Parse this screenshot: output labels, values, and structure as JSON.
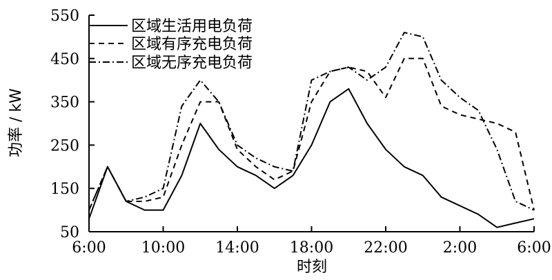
{
  "chart_data": {
    "type": "line",
    "xlabel": "时刻",
    "ylabel": "功率 / kW",
    "xticks": [
      "6:00",
      "10:00",
      "14:00",
      "18:00",
      "22:00",
      "2:00",
      "6:00"
    ],
    "yticks": [
      50,
      150,
      250,
      350,
      450,
      550
    ],
    "ylim": [
      50,
      550
    ],
    "x": [
      "6:00",
      "7:00",
      "8:00",
      "9:00",
      "10:00",
      "11:00",
      "12:00",
      "13:00",
      "14:00",
      "15:00",
      "16:00",
      "17:00",
      "18:00",
      "19:00",
      "20:00",
      "21:00",
      "22:00",
      "23:00",
      "0:00",
      "1:00",
      "2:00",
      "3:00",
      "4:00",
      "5:00",
      "6:00"
    ],
    "grid": false,
    "legend_position": "top-left",
    "series": [
      {
        "name": "区域生活用电负荷",
        "style": "solid",
        "color": "#000000",
        "values": [
          80,
          200,
          120,
          100,
          100,
          180,
          300,
          240,
          200,
          180,
          150,
          180,
          250,
          350,
          380,
          300,
          240,
          200,
          180,
          130,
          110,
          90,
          60,
          70,
          80
        ]
      },
      {
        "name": "区域有序充电负荷",
        "style": "dashed",
        "color": "#000000",
        "values": [
          100,
          200,
          120,
          120,
          130,
          250,
          350,
          350,
          240,
          200,
          170,
          190,
          350,
          420,
          430,
          420,
          360,
          450,
          450,
          340,
          320,
          310,
          300,
          280,
          100
        ]
      },
      {
        "name": "区域无序充电负荷",
        "style": "dashdot",
        "color": "#000000",
        "values": [
          100,
          200,
          120,
          130,
          150,
          340,
          400,
          350,
          250,
          220,
          200,
          190,
          400,
          420,
          430,
          400,
          430,
          510,
          500,
          400,
          360,
          330,
          240,
          120,
          100
        ]
      }
    ]
  }
}
